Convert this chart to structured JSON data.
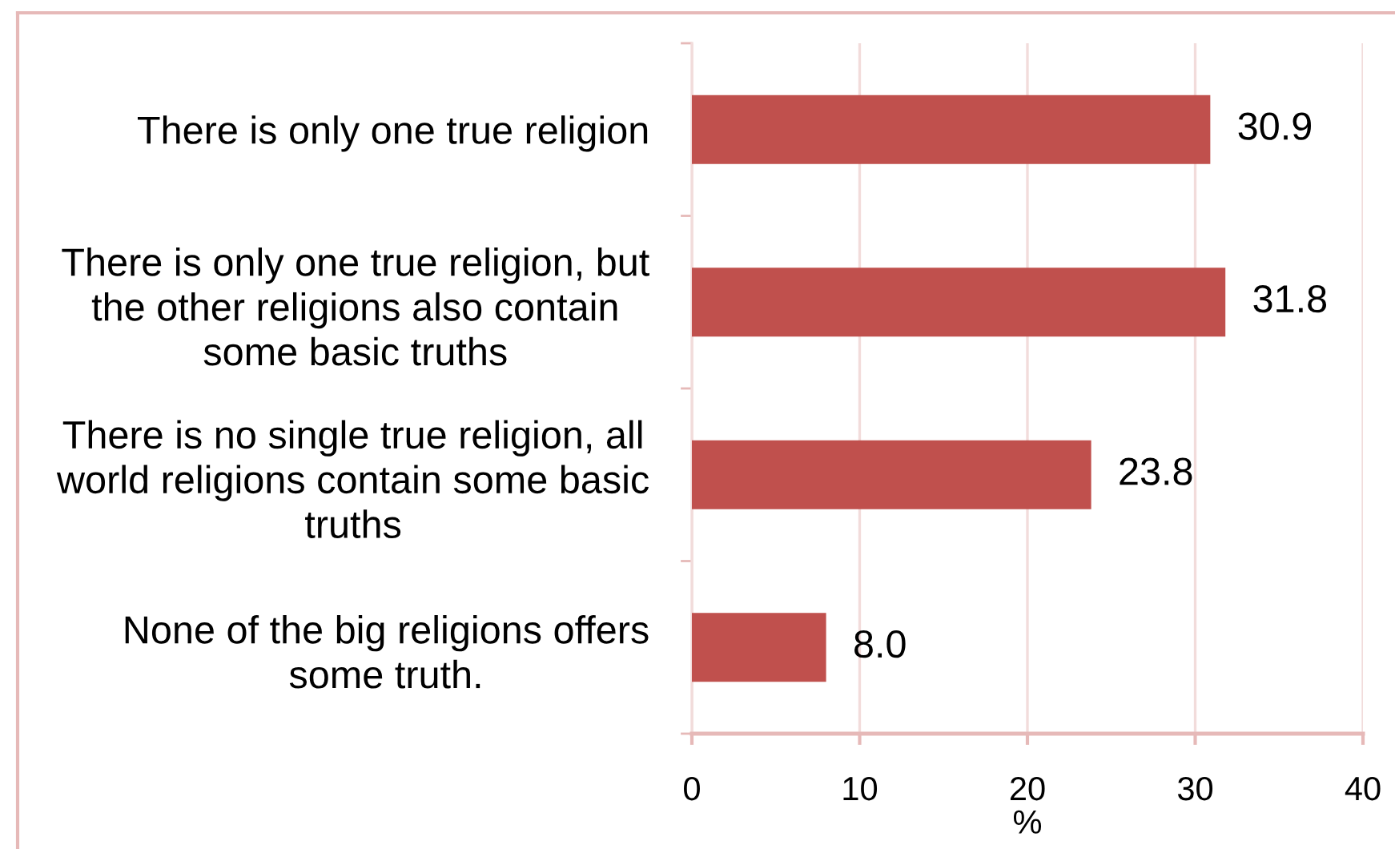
{
  "chart_data": {
    "type": "bar",
    "orientation": "horizontal",
    "categories": [
      "There is only one true religion",
      "There is only one true religion, but\nthe other religions also contain\nsome basic truths",
      "There is no single true religion, all\nworld religions contain some basic\ntruths",
      "None of the big religions offers\nsome truth."
    ],
    "values": [
      30.9,
      31.8,
      23.8,
      8.0
    ],
    "value_labels": [
      "30.9",
      "31.8",
      "23.8",
      "8.0"
    ],
    "color": "#c0504d",
    "xlabel": "%",
    "xlim": [
      0,
      40
    ],
    "xticks": [
      0,
      10,
      20,
      30,
      40
    ],
    "grid": "x"
  }
}
